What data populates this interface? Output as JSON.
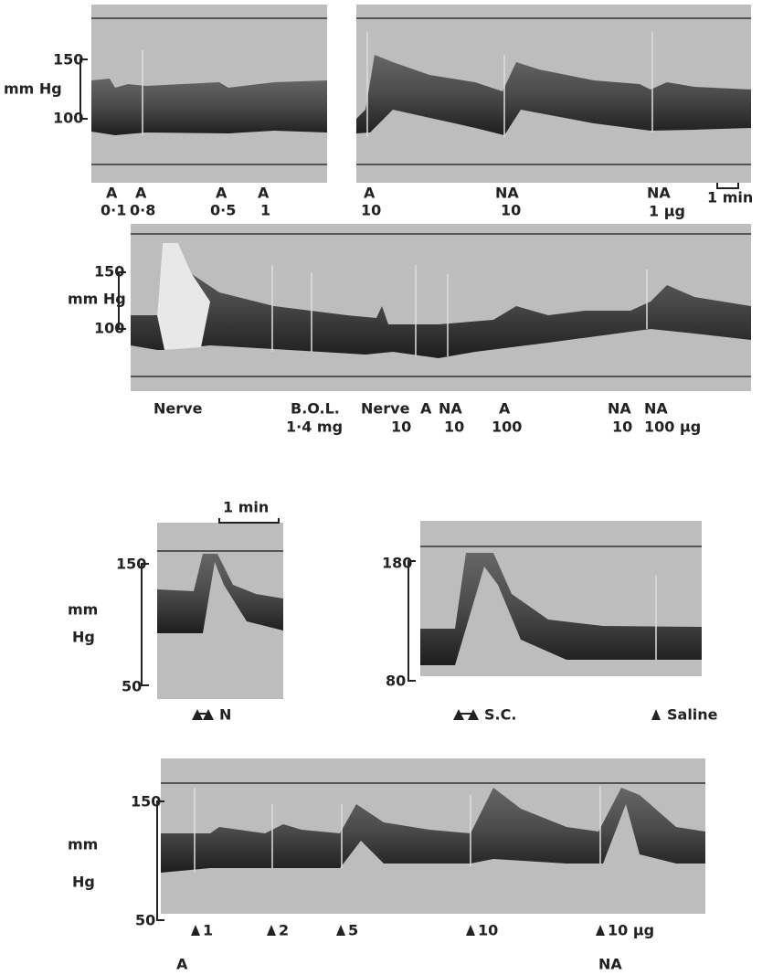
{
  "panels": [
    {
      "scale": {
        "ticks": [
          150,
          100
        ],
        "unit": "mm Hg"
      },
      "labels": [
        {
          "drug": "A",
          "dose": "0·1"
        },
        {
          "drug": "A",
          "dose": "0·8"
        },
        {
          "drug": "A",
          "dose": "0·5"
        },
        {
          "drug": "A",
          "dose": "1"
        }
      ]
    },
    {
      "labels": [
        {
          "drug": "A",
          "dose": "10"
        },
        {
          "drug": "NA",
          "dose": "10"
        },
        {
          "drug": "NA",
          "dose": "1 μg"
        }
      ],
      "time_scale": "1 min"
    },
    {
      "scale": {
        "ticks": [
          150,
          100
        ],
        "unit": "mm Hg"
      },
      "labels": [
        {
          "drug": "Nerve"
        },
        {
          "drug": "B.O.L.",
          "dose": "1·4 mg"
        },
        {
          "drug": "Nerve",
          "dose": "10"
        },
        {
          "drug": "A"
        },
        {
          "drug": "NA",
          "dose": "10"
        },
        {
          "drug": "A",
          "dose": "100"
        },
        {
          "drug": "NA",
          "dose": "10"
        },
        {
          "drug": "NA",
          "dose": "100 μg"
        }
      ]
    },
    {
      "scale": {
        "ticks": [
          150,
          50
        ],
        "unit_lines": [
          "mm",
          "Hg"
        ]
      },
      "time_scale": "1 min",
      "labels": [
        {
          "drug": "N"
        }
      ]
    },
    {
      "scale": {
        "ticks": [
          180,
          80
        ]
      },
      "labels": [
        {
          "drug": "S.C."
        },
        {
          "drug": "Saline"
        }
      ]
    },
    {
      "scale": {
        "ticks": [
          150,
          50
        ],
        "unit_lines": [
          "mm",
          "Hg"
        ]
      },
      "doses": [
        "1",
        "2",
        "5",
        "10",
        "10 μg"
      ],
      "groups": [
        "A",
        "NA"
      ]
    }
  ]
}
